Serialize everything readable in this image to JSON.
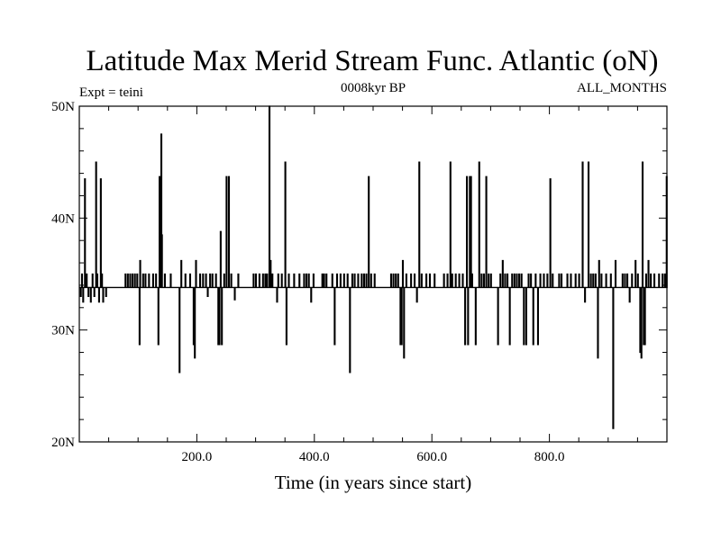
{
  "chart_data": {
    "type": "line",
    "title": "Latitude Max Merid Stream Func. Atlantic (oN)",
    "subtitle_left": "Expt = teini",
    "subtitle_center": "0008kyr BP",
    "subtitle_right": "ALL_MONTHS",
    "xlabel": "Time (in years since start)",
    "ylabel": "",
    "xlim": [
      0,
      1000
    ],
    "ylim": [
      20,
      50
    ],
    "x_ticks": [
      200,
      400,
      600,
      800
    ],
    "x_tick_labels": [
      "200.0",
      "400.0",
      "600.0",
      "800.0"
    ],
    "y_ticks": [
      20,
      30,
      40,
      50
    ],
    "y_tick_labels": [
      "20N",
      "30N",
      "40N",
      "50N"
    ],
    "grid": false,
    "line_color": "#000000",
    "baseline": 33.8,
    "series": [
      {
        "events": [
          [
            2,
            33.0
          ],
          [
            4,
            35.0
          ],
          [
            6,
            32.5
          ],
          [
            9,
            43.5
          ],
          [
            12,
            35.0
          ],
          [
            15,
            33.0
          ],
          [
            19,
            32.5
          ],
          [
            22,
            35.0
          ],
          [
            25,
            33.0
          ],
          [
            28,
            45.0
          ],
          [
            30,
            35.0
          ],
          [
            33,
            32.5
          ],
          [
            36,
            43.5
          ],
          [
            38,
            35.0
          ],
          [
            40,
            32.5
          ],
          [
            45,
            33.0
          ],
          [
            78,
            35.0
          ],
          [
            82,
            35.0
          ],
          [
            86,
            35.0
          ],
          [
            90,
            35.0
          ],
          [
            94,
            35.0
          ],
          [
            98,
            35.0
          ],
          [
            102,
            28.7
          ],
          [
            103,
            36.2
          ],
          [
            108,
            35.0
          ],
          [
            112,
            35.0
          ],
          [
            118,
            35.0
          ],
          [
            125,
            35.0
          ],
          [
            130,
            35.0
          ],
          [
            134,
            28.7
          ],
          [
            136,
            43.7
          ],
          [
            139,
            47.5
          ],
          [
            140,
            38.5
          ],
          [
            145,
            35.0
          ],
          [
            155,
            35.0
          ],
          [
            170,
            26.2
          ],
          [
            173,
            36.2
          ],
          [
            180,
            35.0
          ],
          [
            188,
            35.0
          ],
          [
            194,
            28.7
          ],
          [
            196,
            27.5
          ],
          [
            198,
            36.2
          ],
          [
            205,
            35.0
          ],
          [
            210,
            35.0
          ],
          [
            215,
            35.0
          ],
          [
            218,
            33.0
          ],
          [
            222,
            35.0
          ],
          [
            226,
            35.0
          ],
          [
            232,
            35.0
          ],
          [
            236,
            28.7
          ],
          [
            238,
            28.7
          ],
          [
            240,
            38.8
          ],
          [
            242,
            28.7
          ],
          [
            246,
            35.0
          ],
          [
            250,
            43.7
          ],
          [
            254,
            43.7
          ],
          [
            258,
            35.0
          ],
          [
            264,
            32.7
          ],
          [
            270,
            35.0
          ],
          [
            296,
            35.0
          ],
          [
            300,
            35.0
          ],
          [
            306,
            35.0
          ],
          [
            312,
            35.0
          ],
          [
            316,
            35.0
          ],
          [
            319,
            35.0
          ],
          [
            323,
            50.0
          ],
          [
            325,
            36.2
          ],
          [
            328,
            35.0
          ],
          [
            336,
            32.5
          ],
          [
            338,
            35.0
          ],
          [
            344,
            35.0
          ],
          [
            350,
            45.0
          ],
          [
            352,
            28.7
          ],
          [
            356,
            35.0
          ],
          [
            365,
            35.0
          ],
          [
            374,
            35.0
          ],
          [
            382,
            35.0
          ],
          [
            386,
            35.0
          ],
          [
            390,
            35.0
          ],
          [
            394,
            32.5
          ],
          [
            398,
            35.0
          ],
          [
            413,
            35.0
          ],
          [
            416,
            35.0
          ],
          [
            420,
            35.0
          ],
          [
            430,
            35.0
          ],
          [
            434,
            28.7
          ],
          [
            438,
            35.0
          ],
          [
            444,
            35.0
          ],
          [
            450,
            35.0
          ],
          [
            456,
            35.0
          ],
          [
            460,
            26.2
          ],
          [
            464,
            35.0
          ],
          [
            468,
            35.0
          ],
          [
            474,
            35.0
          ],
          [
            480,
            35.0
          ],
          [
            484,
            35.0
          ],
          [
            488,
            35.0
          ],
          [
            492,
            43.7
          ],
          [
            496,
            35.0
          ],
          [
            502,
            35.0
          ],
          [
            530,
            35.0
          ],
          [
            534,
            35.0
          ],
          [
            538,
            35.0
          ],
          [
            542,
            35.0
          ],
          [
            546,
            28.7
          ],
          [
            548,
            28.7
          ],
          [
            550,
            36.2
          ],
          [
            552,
            27.5
          ],
          [
            556,
            35.0
          ],
          [
            564,
            35.0
          ],
          [
            570,
            35.0
          ],
          [
            574,
            32.5
          ],
          [
            578,
            45.0
          ],
          [
            582,
            35.0
          ],
          [
            590,
            35.0
          ],
          [
            596,
            35.0
          ],
          [
            604,
            35.0
          ],
          [
            620,
            35.0
          ],
          [
            626,
            35.0
          ],
          [
            631,
            45.0
          ],
          [
            634,
            35.0
          ],
          [
            640,
            35.0
          ],
          [
            646,
            35.0
          ],
          [
            652,
            35.0
          ],
          [
            656,
            28.7
          ],
          [
            659,
            43.7
          ],
          [
            661,
            28.7
          ],
          [
            664,
            43.7
          ],
          [
            666,
            43.7
          ],
          [
            668,
            35.0
          ],
          [
            674,
            28.7
          ],
          [
            680,
            45.0
          ],
          [
            684,
            35.0
          ],
          [
            688,
            35.0
          ],
          [
            692,
            43.7
          ],
          [
            696,
            35.0
          ],
          [
            700,
            35.0
          ],
          [
            712,
            28.7
          ],
          [
            716,
            35.0
          ],
          [
            720,
            36.2
          ],
          [
            724,
            35.0
          ],
          [
            728,
            35.0
          ],
          [
            732,
            28.7
          ],
          [
            736,
            35.0
          ],
          [
            740,
            35.0
          ],
          [
            744,
            35.0
          ],
          [
            748,
            35.0
          ],
          [
            752,
            35.0
          ],
          [
            756,
            28.7
          ],
          [
            760,
            28.7
          ],
          [
            764,
            35.0
          ],
          [
            768,
            35.0
          ],
          [
            772,
            28.7
          ],
          [
            776,
            35.0
          ],
          [
            780,
            28.7
          ],
          [
            784,
            35.0
          ],
          [
            790,
            35.0
          ],
          [
            796,
            35.0
          ],
          [
            801,
            43.5
          ],
          [
            805,
            35.0
          ],
          [
            816,
            35.0
          ],
          [
            820,
            35.0
          ],
          [
            830,
            35.0
          ],
          [
            836,
            35.0
          ],
          [
            844,
            35.0
          ],
          [
            850,
            35.0
          ],
          [
            856,
            45.0
          ],
          [
            860,
            32.5
          ],
          [
            866,
            45.0
          ],
          [
            870,
            35.0
          ],
          [
            874,
            35.0
          ],
          [
            878,
            35.0
          ],
          [
            882,
            27.5
          ],
          [
            884,
            36.2
          ],
          [
            888,
            35.0
          ],
          [
            896,
            35.0
          ],
          [
            904,
            35.0
          ],
          [
            908,
            21.2
          ],
          [
            912,
            36.2
          ],
          [
            924,
            35.0
          ],
          [
            928,
            35.0
          ],
          [
            932,
            35.0
          ],
          [
            936,
            32.5
          ],
          [
            940,
            35.0
          ],
          [
            946,
            36.2
          ],
          [
            950,
            35.0
          ],
          [
            954,
            28.0
          ],
          [
            956,
            27.5
          ],
          [
            958,
            45.0
          ],
          [
            960,
            28.7
          ],
          [
            962,
            28.7
          ],
          [
            964,
            35.0
          ],
          [
            968,
            36.2
          ],
          [
            972,
            35.0
          ],
          [
            978,
            35.0
          ],
          [
            986,
            35.0
          ],
          [
            992,
            35.0
          ],
          [
            996,
            35.0
          ],
          [
            999,
            43.7
          ]
        ]
      }
    ]
  }
}
